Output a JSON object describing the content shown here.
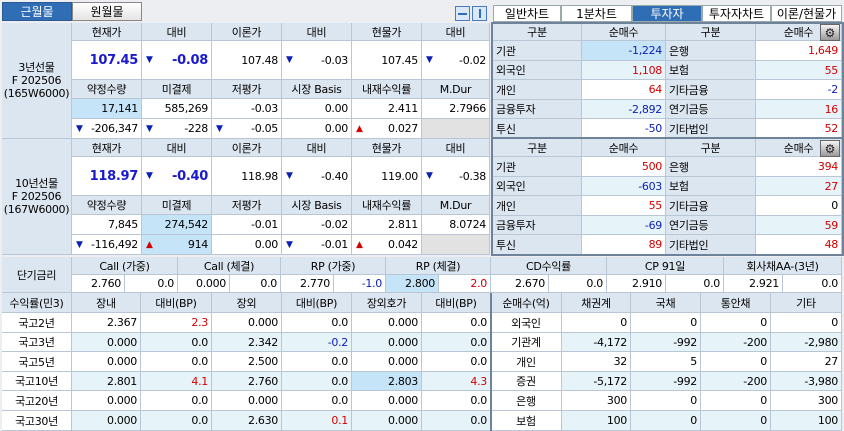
{
  "tabs_left": [
    {
      "label": "근월물",
      "active": true
    },
    {
      "label": "원월물",
      "active": false
    }
  ],
  "view_icons": [
    "split-horizontal-icon",
    "split-vertical-icon"
  ],
  "tabs_right": [
    {
      "label": "일반차트",
      "active": false
    },
    {
      "label": "1분차트",
      "active": false
    },
    {
      "label": "투자자",
      "active": true
    },
    {
      "label": "투자자차트",
      "active": false
    },
    {
      "label": "이론/현물가",
      "active": false
    }
  ],
  "futures": [
    {
      "label": [
        "3년선물",
        "F 202506",
        "(165W6000)"
      ],
      "headers1": [
        "현재가",
        "대비",
        "이론가",
        "대비",
        "현물가",
        "대비"
      ],
      "row1": [
        {
          "v": "107.45"
        },
        {
          "arrow": "down",
          "v": "-0.08"
        },
        {
          "v": "107.48"
        },
        {
          "arrow": "down",
          "v": "-0.03"
        },
        {
          "v": "107.45"
        },
        {
          "arrow": "down",
          "v": "-0.02"
        }
      ],
      "headers2": [
        "약정수량",
        "미결제",
        "저평가",
        "시장 Basis",
        "내재수익률",
        "M.Dur"
      ],
      "row2": [
        {
          "v": "17,141",
          "hl": true
        },
        {
          "v": "585,269"
        },
        {
          "v": "-0.03"
        },
        {
          "v": "0.00"
        },
        {
          "v": "2.411"
        },
        {
          "v": "2.7966"
        }
      ],
      "row3": [
        {
          "arrow": "down",
          "v": "-206,347"
        },
        {
          "arrow": "down",
          "v": "-228"
        },
        {
          "arrow": "down",
          "v": "-0.05"
        },
        {
          "v": "0.00"
        },
        {
          "arrow": "up",
          "v": "0.027"
        },
        {
          "v": "",
          "gray": true
        }
      ]
    },
    {
      "label": [
        "10년선물",
        "F 202506",
        "(167W6000)"
      ],
      "headers1": [
        "현재가",
        "대비",
        "이론가",
        "대비",
        "현물가",
        "대비"
      ],
      "row1": [
        {
          "v": "118.97"
        },
        {
          "arrow": "down",
          "v": "-0.40"
        },
        {
          "v": "118.98"
        },
        {
          "arrow": "down",
          "v": "-0.40"
        },
        {
          "v": "119.00"
        },
        {
          "arrow": "down",
          "v": "-0.38"
        }
      ],
      "headers2": [
        "약정수량",
        "미결제",
        "저평가",
        "시장 Basis",
        "내재수익률",
        "M.Dur"
      ],
      "row2": [
        {
          "v": "7,845"
        },
        {
          "v": "274,542",
          "hl": true
        },
        {
          "v": "-0.01"
        },
        {
          "v": "-0.02"
        },
        {
          "v": "2.811"
        },
        {
          "v": "8.0724"
        }
      ],
      "row3": [
        {
          "arrow": "down",
          "v": "-116,492"
        },
        {
          "arrow": "up",
          "v": "914",
          "hl": true
        },
        {
          "v": "0.00"
        },
        {
          "arrow": "down",
          "v": "-0.01"
        },
        {
          "arrow": "up",
          "v": "0.042"
        },
        {
          "v": "",
          "gray": true
        }
      ]
    }
  ],
  "investors": [
    {
      "headers": [
        "구분",
        "순매수",
        "구분",
        "순매수"
      ],
      "rows": [
        [
          "기관",
          "-1,224",
          "은행",
          "1,649"
        ],
        [
          "외국인",
          "1,108",
          "보험",
          "55"
        ],
        [
          "개인",
          "64",
          "기타금융",
          "-2"
        ],
        [
          "금융투자",
          "-2,892",
          "연기금등",
          "16"
        ],
        [
          "투신",
          "-50",
          "기타법인",
          "52"
        ]
      ]
    },
    {
      "headers": [
        "구분",
        "순매수",
        "구분",
        "순매수"
      ],
      "rows": [
        [
          "기관",
          "500",
          "은행",
          "394"
        ],
        [
          "외국인",
          "-603",
          "보험",
          "27"
        ],
        [
          "개인",
          "55",
          "기타금융",
          "0"
        ],
        [
          "금융투자",
          "-69",
          "연기금등",
          "59"
        ],
        [
          "투신",
          "89",
          "기타법인",
          "48"
        ]
      ]
    }
  ],
  "short_rates": {
    "label": "단기금리",
    "items": [
      {
        "name": "Call (가중)",
        "rate": "2.760",
        "chg": "0.0"
      },
      {
        "name": "Call (체결)",
        "rate": "0.000",
        "chg": "0.0"
      },
      {
        "name": "RP (가중)",
        "rate": "2.770",
        "chg": "-1.0"
      },
      {
        "name": "RP (체결)",
        "rate": "2.800",
        "chg": "2.0"
      },
      {
        "name": "CD수익률",
        "rate": "2.670",
        "chg": "0.0"
      },
      {
        "name": "CP 91일",
        "rate": "2.910",
        "chg": "0.0"
      },
      {
        "name": "회사채AA-(3년)",
        "rate": "2.921",
        "chg": "0.0"
      }
    ]
  },
  "yields": {
    "headers": [
      "수익률(민3)",
      "장내",
      "대비(BP)",
      "장외",
      "대비(BP)",
      "장외호가",
      "대비(BP)"
    ],
    "rows": [
      [
        "국고2년",
        "2.367",
        "2.3",
        "0.000",
        "0.0",
        "0.000",
        "0.0"
      ],
      [
        "국고3년",
        "0.000",
        "0.0",
        "2.342",
        "-0.2",
        "0.000",
        "0.0"
      ],
      [
        "국고5년",
        "0.000",
        "0.0",
        "2.500",
        "0.0",
        "0.000",
        "0.0"
      ],
      [
        "국고10년",
        "2.801",
        "4.1",
        "2.760",
        "0.0",
        "2.803",
        "4.3"
      ],
      [
        "국고20년",
        "0.000",
        "0.0",
        "0.000",
        "0.0",
        "0.000",
        "0.0"
      ],
      [
        "국고30년",
        "0.000",
        "0.0",
        "2.630",
        "0.1",
        "0.000",
        "0.0"
      ]
    ]
  },
  "bond_flows": {
    "headers": [
      "순매수(억)",
      "채권계",
      "국채",
      "통안채",
      "기타"
    ],
    "rows": [
      [
        "외국인",
        "0",
        "0",
        "0",
        "0"
      ],
      [
        "기관계",
        "-4,172",
        "-992",
        "-200",
        "-2,980"
      ],
      [
        "개인",
        "32",
        "5",
        "0",
        "27"
      ],
      [
        "증권",
        "-5,172",
        "-992",
        "-200",
        "-3,980"
      ],
      [
        "은행",
        "300",
        "0",
        "0",
        "300"
      ],
      [
        "보험",
        "100",
        "0",
        "0",
        "100"
      ]
    ]
  },
  "colors": {
    "accent": "#2f6db5",
    "header_bg": "#dce6f1",
    "highlight": "#c6e4f8",
    "up": "#d40000",
    "down": "#0a1fb8"
  }
}
